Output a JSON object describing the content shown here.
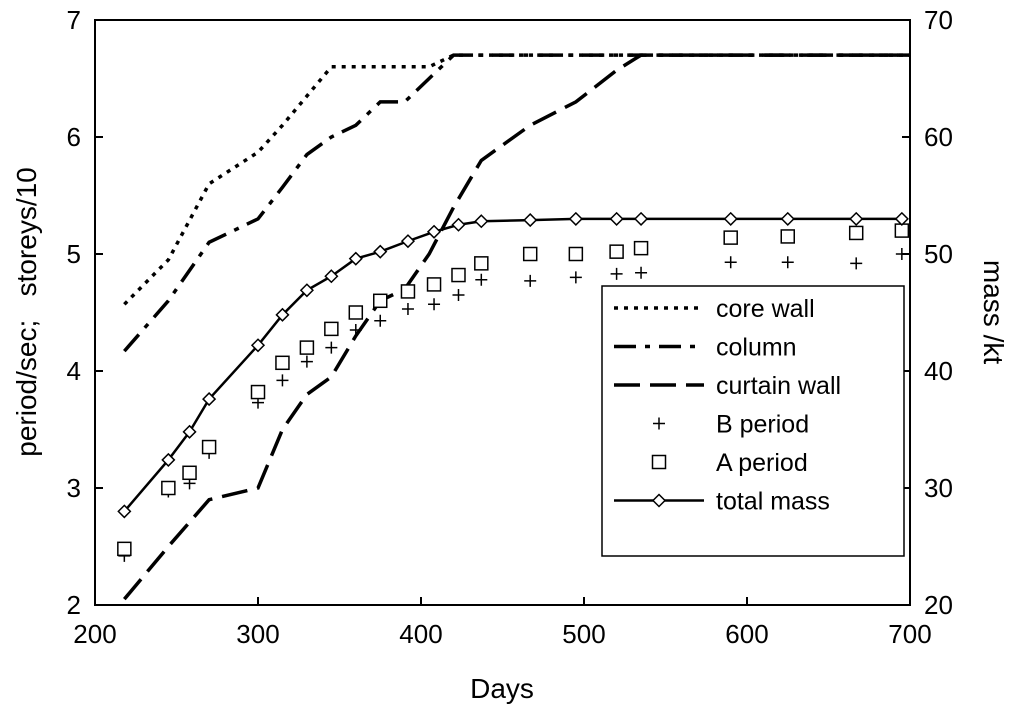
{
  "chart_data": {
    "type": "line",
    "title": "",
    "xlabel": "Days",
    "ylabel_left": "period/sec;   storeys/10",
    "ylabel_right": "mass /kt",
    "xlim": [
      200,
      700
    ],
    "ylim_left": [
      2,
      7
    ],
    "ylim_right": [
      20,
      70
    ],
    "xticks": [
      "200",
      "300",
      "400",
      "500",
      "600",
      "700"
    ],
    "yticks_left": [
      "2",
      "3",
      "4",
      "5",
      "6",
      "7"
    ],
    "yticks_right": [
      "20",
      "30",
      "40",
      "50",
      "60",
      "70"
    ],
    "grid": false,
    "legend_position": "right",
    "series": [
      {
        "name": "core wall",
        "axis": "left",
        "style": "dotted",
        "x": [
          218,
          245,
          270,
          300,
          315,
          330,
          345,
          360,
          375,
          390,
          405,
          420,
          700
        ],
        "y": [
          4.57,
          4.95,
          5.6,
          5.87,
          6.1,
          6.35,
          6.6,
          6.6,
          6.6,
          6.6,
          6.6,
          6.7,
          6.7
        ]
      },
      {
        "name": "column",
        "axis": "left",
        "style": "dash-dot",
        "x": [
          218,
          245,
          270,
          300,
          315,
          330,
          345,
          360,
          375,
          390,
          405,
          420,
          700
        ],
        "y": [
          4.17,
          4.6,
          5.1,
          5.3,
          5.57,
          5.85,
          6.0,
          6.1,
          6.3,
          6.3,
          6.5,
          6.7,
          6.7
        ]
      },
      {
        "name": "curtain wall",
        "axis": "left",
        "style": "dashed",
        "x": [
          218,
          245,
          270,
          300,
          315,
          330,
          345,
          360,
          375,
          390,
          405,
          420,
          437,
          467,
          495,
          520,
          535,
          700
        ],
        "y": [
          2.05,
          2.5,
          2.9,
          3.0,
          3.5,
          3.8,
          3.95,
          4.3,
          4.6,
          4.7,
          5.0,
          5.4,
          5.8,
          6.1,
          6.3,
          6.57,
          6.7,
          6.7
        ]
      },
      {
        "name": "B period",
        "axis": "left",
        "style": "plus-markers",
        "x": [
          218,
          245,
          258,
          270,
          300,
          315,
          330,
          345,
          360,
          375,
          392,
          408,
          423,
          437,
          467,
          495,
          520,
          535,
          590,
          625,
          667,
          695
        ],
        "y": [
          2.42,
          2.97,
          3.04,
          3.3,
          3.73,
          3.92,
          4.08,
          4.2,
          4.35,
          4.43,
          4.53,
          4.57,
          4.65,
          4.78,
          4.77,
          4.8,
          4.83,
          4.84,
          4.93,
          4.93,
          4.92,
          5.0
        ]
      },
      {
        "name": "A period",
        "axis": "left",
        "style": "square-markers",
        "x": [
          218,
          245,
          258,
          270,
          300,
          315,
          330,
          345,
          360,
          375,
          392,
          408,
          423,
          437,
          467,
          495,
          520,
          535,
          590,
          625,
          667,
          695
        ],
        "y": [
          2.48,
          3.0,
          3.13,
          3.35,
          3.82,
          4.07,
          4.2,
          4.36,
          4.5,
          4.6,
          4.68,
          4.74,
          4.82,
          4.92,
          5.0,
          5.0,
          5.02,
          5.05,
          5.14,
          5.15,
          5.18,
          5.2
        ]
      },
      {
        "name": "total mass",
        "axis": "right",
        "style": "solid-diamond",
        "x": [
          218,
          245,
          258,
          270,
          300,
          315,
          330,
          345,
          360,
          375,
          392,
          408,
          423,
          437,
          467,
          495,
          520,
          535,
          590,
          625,
          667,
          695
        ],
        "y": [
          28.0,
          32.4,
          34.8,
          37.6,
          42.2,
          44.8,
          46.9,
          48.1,
          49.6,
          50.2,
          51.1,
          51.9,
          52.5,
          52.8,
          52.9,
          53.0,
          53.0,
          53.0,
          53.0,
          53.0,
          53.0,
          53.0
        ]
      }
    ]
  }
}
